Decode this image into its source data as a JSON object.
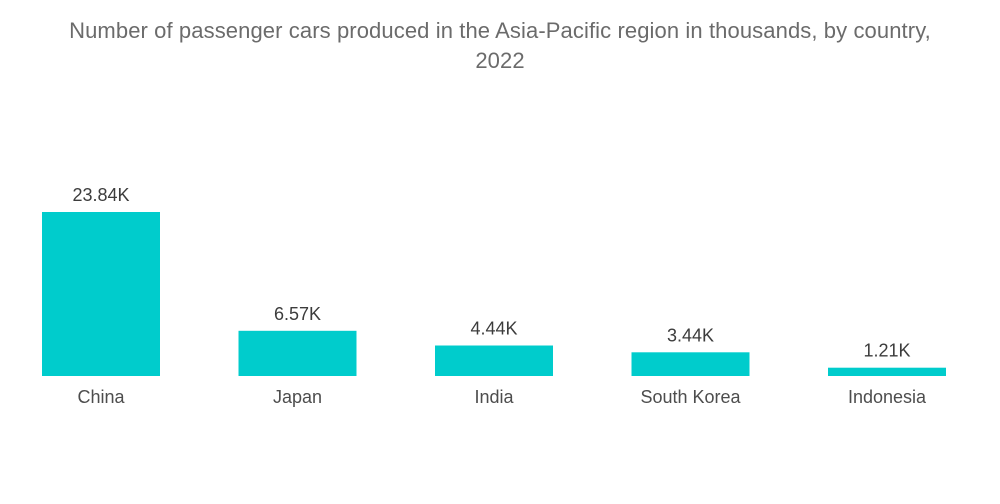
{
  "chart_data": {
    "type": "bar",
    "title_line1": "Number of passenger cars produced in the Asia-Pacific region in thousands, by country,",
    "title_line2": "2022",
    "categories": [
      "China",
      "Japan",
      "India",
      "South Korea",
      "Indonesia"
    ],
    "values": [
      23840,
      6570,
      4440,
      3440,
      1210
    ],
    "data_labels": [
      "23.84K",
      "6.57K",
      "4.44K",
      "3.44K",
      "1.21K"
    ],
    "xlabel": "",
    "ylabel": "",
    "ylim": [
      0,
      23840
    ],
    "grid": false,
    "legend": "none",
    "bar_color": "#00cccc"
  }
}
